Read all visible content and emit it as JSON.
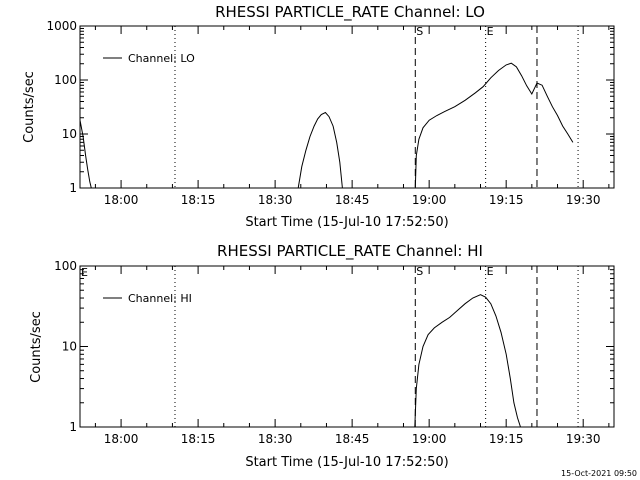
{
  "footer": {
    "timestamp": "15-Oct-2021 09:50"
  },
  "chart_data": [
    {
      "type": "line",
      "title": "RHESSI PARTICLE_RATE Channel: LO",
      "xlabel": "Start Time (15-Jul-10 17:52:50)",
      "ylabel": "Counts/sec",
      "yscale": "log",
      "xlim_minutes": [
        -8,
        96
      ],
      "ylim": [
        1,
        1000
      ],
      "xtick_minutes": [
        0,
        15,
        30,
        45,
        60,
        75,
        90
      ],
      "xtick_labels": [
        "18:00",
        "18:15",
        "18:30",
        "18:45",
        "19:00",
        "19:15",
        "19:30"
      ],
      "ytick_values": [
        1,
        10,
        100,
        1000
      ],
      "ytick_labels": [
        "1",
        "10",
        "100",
        "1000"
      ],
      "legend": {
        "position": "top-left",
        "label": "Channel: LO"
      },
      "grid": false,
      "vlines": [
        {
          "x": 10.5,
          "style": "dotted"
        },
        {
          "x": 57.3,
          "style": "dashed",
          "label": "S"
        },
        {
          "x": 71.0,
          "style": "dotted",
          "label": "E"
        },
        {
          "x": 81.0,
          "style": "dashed"
        },
        {
          "x": 89.0,
          "style": "dotted"
        }
      ],
      "series": [
        {
          "x": [
            -8.0,
            -7.4,
            -6.9,
            -6.5,
            -6.1,
            -5.8
          ],
          "y": [
            18,
            9,
            4,
            2.2,
            1.3,
            1
          ]
        },
        {
          "x": [
            34.5,
            35.2,
            36.0,
            36.8,
            37.6,
            38.3,
            39.0,
            39.8,
            40.5,
            41.3,
            42.0,
            42.6,
            43.1
          ],
          "y": [
            1,
            2.5,
            5,
            9,
            14,
            19,
            23,
            25,
            21,
            14,
            7,
            3,
            1
          ]
        },
        {
          "x": [
            57.3,
            57.5,
            58.0,
            58.8,
            60.0,
            61.5,
            63.0,
            65.0,
            67.0,
            69.0,
            70.5,
            72.0,
            73.5,
            75.0,
            76.0,
            77.0,
            78.0,
            79.0,
            80.0,
            81.0,
            82.0,
            83.0,
            84.0,
            85.0,
            86.0,
            87.0,
            88.0
          ],
          "y": [
            1,
            4,
            8,
            13,
            18,
            22,
            26,
            32,
            42,
            58,
            75,
            110,
            150,
            190,
            205,
            175,
            120,
            78,
            55,
            88,
            80,
            50,
            32,
            22,
            14,
            10,
            7
          ]
        }
      ]
    },
    {
      "type": "line",
      "title": "RHESSI PARTICLE_RATE Channel: HI",
      "xlabel": "Start Time (15-Jul-10 17:52:50)",
      "ylabel": "Counts/sec",
      "yscale": "log",
      "xlim_minutes": [
        -8,
        96
      ],
      "ylim": [
        1,
        100
      ],
      "xtick_minutes": [
        0,
        15,
        30,
        45,
        60,
        75,
        90
      ],
      "xtick_labels": [
        "18:00",
        "18:15",
        "18:30",
        "18:45",
        "19:00",
        "19:15",
        "19:30"
      ],
      "ytick_values": [
        1,
        10,
        100
      ],
      "ytick_labels": [
        "1",
        "10",
        "100"
      ],
      "legend": {
        "position": "top-left",
        "label": "Channel: HI"
      },
      "grid": false,
      "vlines": [
        {
          "x": 10.5,
          "style": "dotted"
        },
        {
          "x": 57.3,
          "style": "dashed",
          "label": "S"
        },
        {
          "x": 71.0,
          "style": "dotted",
          "label": "E"
        },
        {
          "x": 81.0,
          "style": "dashed"
        },
        {
          "x": 89.0,
          "style": "dotted"
        }
      ],
      "corner_marker": "E",
      "series": [
        {
          "x": [
            57.2,
            57.5,
            58.0,
            58.8,
            59.8,
            61.0,
            62.5,
            64.0,
            65.5,
            67.0,
            68.5,
            70.0,
            71.0,
            72.0,
            73.0,
            74.0,
            75.0,
            75.8,
            76.5,
            77.2,
            77.8
          ],
          "y": [
            1,
            3,
            6,
            10,
            14,
            17,
            20,
            23,
            28,
            34,
            40,
            44,
            41,
            34,
            24,
            15,
            8,
            4,
            2,
            1.3,
            1
          ]
        }
      ]
    }
  ]
}
